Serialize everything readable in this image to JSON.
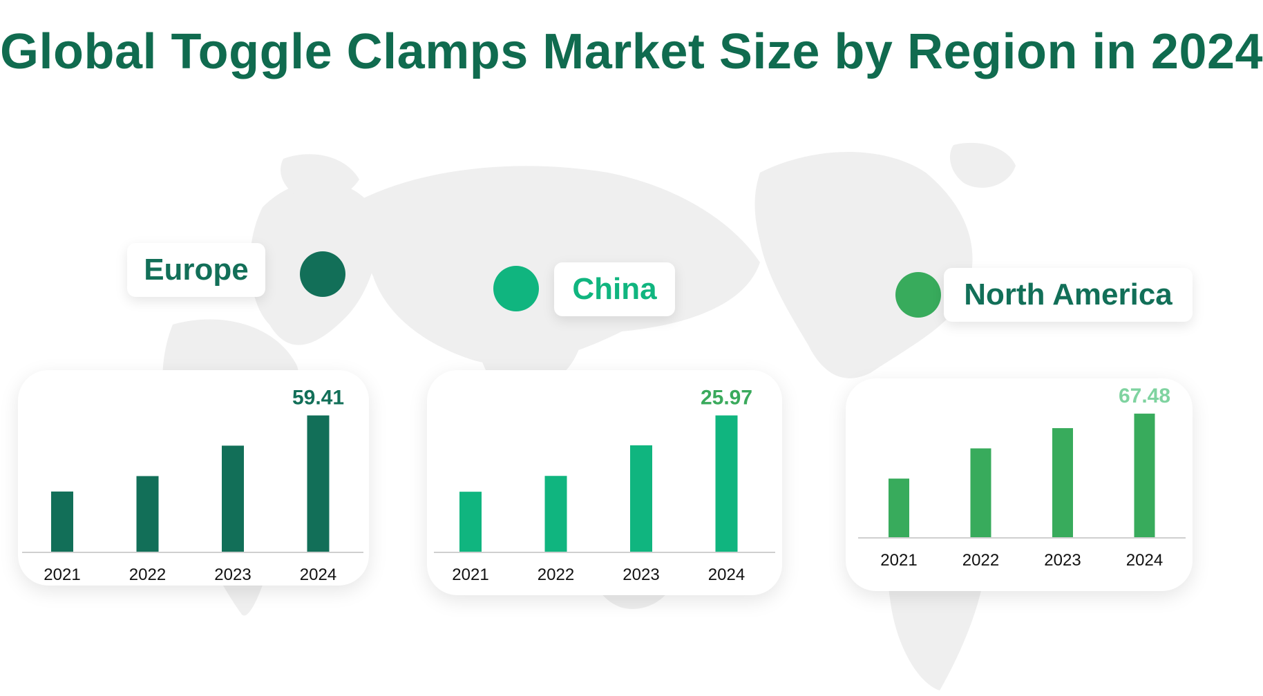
{
  "title": "Global Toggle Clamps Market Size by Region in 2024",
  "colors": {
    "title": "#106b4f",
    "background": "#ffffff",
    "map": "#efefef",
    "axis": "#cfcfcf"
  },
  "regions": [
    {
      "name": "Europe",
      "color": "#126f58",
      "label_color": "#126f58",
      "value_label_color": "#126f58"
    },
    {
      "name": "China",
      "color": "#10b57f",
      "label_color": "#10b57f",
      "value_label_color": "#3aaa5c"
    },
    {
      "name": "North America",
      "color": "#38ab5c",
      "label_color": "#126f58",
      "value_label_color": "#7fd3a0"
    }
  ],
  "chart_data": [
    {
      "type": "bar",
      "region": "Europe",
      "categories": [
        "2021",
        "2022",
        "2023",
        "2024"
      ],
      "values": [
        26.4,
        33.1,
        46.3,
        59.41
      ],
      "value_labels": [
        null,
        null,
        null,
        "59.41"
      ],
      "ylim": [
        0,
        62
      ],
      "grid": false,
      "color": "#126f58"
    },
    {
      "type": "bar",
      "region": "China",
      "categories": [
        "2021",
        "2022",
        "2023",
        "2024"
      ],
      "values": [
        11.5,
        14.5,
        20.3,
        25.97
      ],
      "value_labels": [
        null,
        null,
        null,
        "25.97"
      ],
      "ylim": [
        0,
        27.1
      ],
      "grid": false,
      "color": "#10b57f"
    },
    {
      "type": "bar",
      "region": "North America",
      "categories": [
        "2021",
        "2022",
        "2023",
        "2024"
      ],
      "values": [
        32.2,
        48.6,
        59.6,
        67.48
      ],
      "value_labels": [
        null,
        null,
        null,
        "67.48"
      ],
      "ylim": [
        0,
        69
      ],
      "grid": false,
      "color": "#38ab5c"
    }
  ]
}
